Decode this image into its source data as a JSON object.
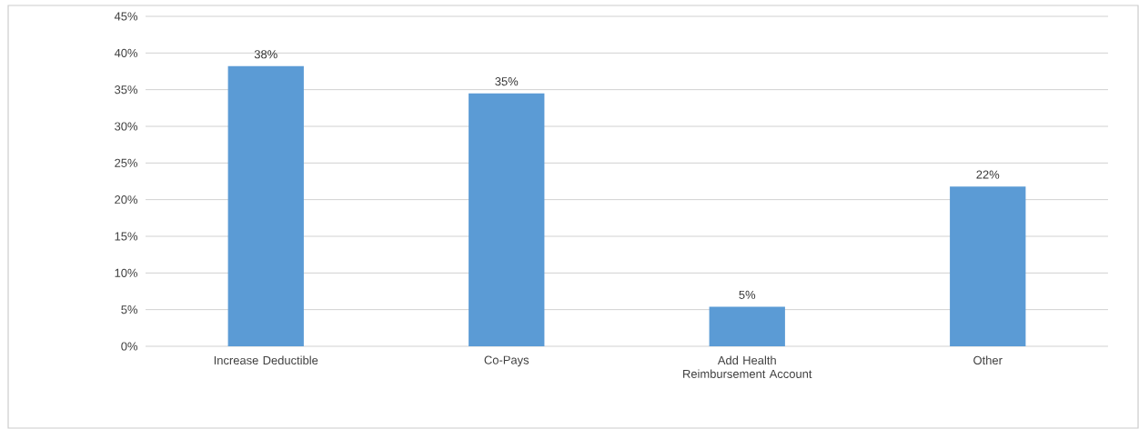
{
  "chart_data": {
    "type": "bar",
    "categories": [
      "Increase Deductible",
      "Co-Pays",
      "Add Health Reimbursement Account",
      "Other"
    ],
    "values": [
      38.2,
      34.5,
      5.4,
      21.8
    ],
    "value_labels": [
      "38%",
      "35%",
      "5%",
      "22%"
    ],
    "color": "#5b9bd5",
    "ylim": [
      0,
      45
    ],
    "yticks": [
      {
        "value": 0,
        "label": "0%"
      },
      {
        "value": 5,
        "label": "5%"
      },
      {
        "value": 10,
        "label": "10%"
      },
      {
        "value": 15,
        "label": "15%"
      },
      {
        "value": 20,
        "label": "20%"
      },
      {
        "value": 25,
        "label": "25%"
      },
      {
        "value": 30,
        "label": "30%"
      },
      {
        "value": 35,
        "label": "35%"
      },
      {
        "value": 40,
        "label": "40%"
      },
      {
        "value": 45,
        "label": "45%"
      }
    ],
    "grid": "y"
  }
}
